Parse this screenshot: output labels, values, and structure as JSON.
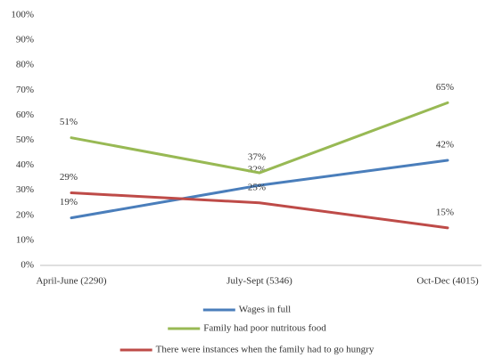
{
  "chart_data": {
    "type": "line",
    "categories": [
      "April-June (2290)",
      "July-Sept (5346)",
      "Oct-Dec (4015)"
    ],
    "series": [
      {
        "name": "Wages in full",
        "color": "#4a7ebb",
        "values": [
          19,
          32,
          42
        ],
        "value_labels": [
          "19%",
          "32%",
          "42%"
        ]
      },
      {
        "name": "Family had poor nutritous food",
        "color": "#98b954",
        "values": [
          51,
          37,
          65
        ],
        "value_labels": [
          "51%",
          "37%",
          "65%"
        ]
      },
      {
        "name": "There were instances when the family had to go hungry",
        "color": "#be4b48",
        "values": [
          29,
          25,
          15
        ],
        "value_labels": [
          "29%",
          "25%",
          "15%"
        ]
      }
    ],
    "ylim": [
      0,
      100
    ],
    "yticks": [
      {
        "value": 0,
        "label": "0%"
      },
      {
        "value": 10,
        "label": "10%"
      },
      {
        "value": 20,
        "label": "20%"
      },
      {
        "value": 30,
        "label": "30%"
      },
      {
        "value": 40,
        "label": "40%"
      },
      {
        "value": 50,
        "label": "50%"
      },
      {
        "value": 60,
        "label": "60%"
      },
      {
        "value": 70,
        "label": "70%"
      },
      {
        "value": 80,
        "label": "80%"
      },
      {
        "value": 90,
        "label": "90%"
      },
      {
        "value": 100,
        "label": "100%"
      }
    ],
    "legend": "bottom"
  }
}
